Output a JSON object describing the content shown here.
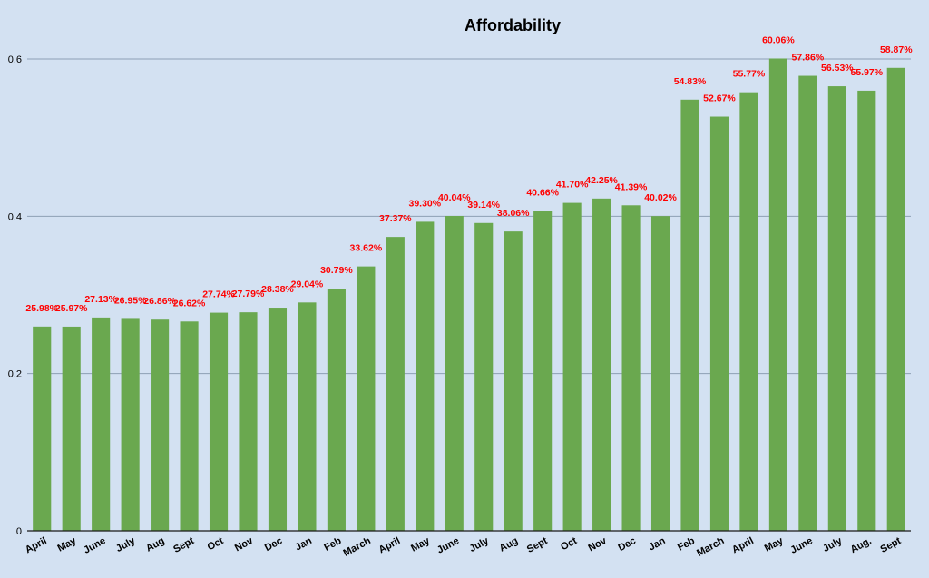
{
  "chart_data": {
    "type": "bar",
    "title": "Affordability",
    "xlabel": "",
    "ylabel": "",
    "ylim": [
      0,
      0.6
    ],
    "yticks": [
      "0",
      "0.2",
      "0.4",
      "0.6"
    ],
    "grid": true,
    "legend": "none",
    "bar_color": "#6aa84f",
    "label_color": "#ff0000",
    "categories": [
      "April",
      "May",
      "June",
      "July",
      "Aug",
      "Sept",
      "Oct",
      "Nov",
      "Dec",
      "Jan",
      "Feb",
      "March",
      "April",
      "May",
      "June",
      "July",
      "Aug",
      "Sept",
      "Oct",
      "Nov",
      "Dec",
      "Jan",
      "Feb",
      "March",
      "April",
      "May",
      "June",
      "July",
      "Aug.",
      "Sept"
    ],
    "values": [
      0.2598,
      0.2597,
      0.2713,
      0.2695,
      0.2686,
      0.2662,
      0.2774,
      0.2779,
      0.2838,
      0.2904,
      0.3079,
      0.3362,
      0.3737,
      0.393,
      0.4004,
      0.3914,
      0.3806,
      0.4066,
      0.417,
      0.4225,
      0.4139,
      0.4002,
      0.5483,
      0.5267,
      0.5577,
      0.6006,
      0.5786,
      0.5653,
      0.5597,
      0.5887
    ],
    "labels": [
      "25.98%",
      "25.97%",
      "27.13%",
      "26.95%",
      "26.86%",
      "26.62%",
      "27.74%",
      "27.79%",
      "28.38%",
      "29.04%",
      "30.79%",
      "33.62%",
      "37.37%",
      "39.30%",
      "40.04%",
      "39.14%",
      "38.06%",
      "40.66%",
      "41.70%",
      "42.25%",
      "41.39%",
      "40.02%",
      "54.83%",
      "52.67%",
      "55.77%",
      "60.06%",
      "57.86%",
      "56.53%",
      "55.97%",
      "58.87%"
    ]
  }
}
